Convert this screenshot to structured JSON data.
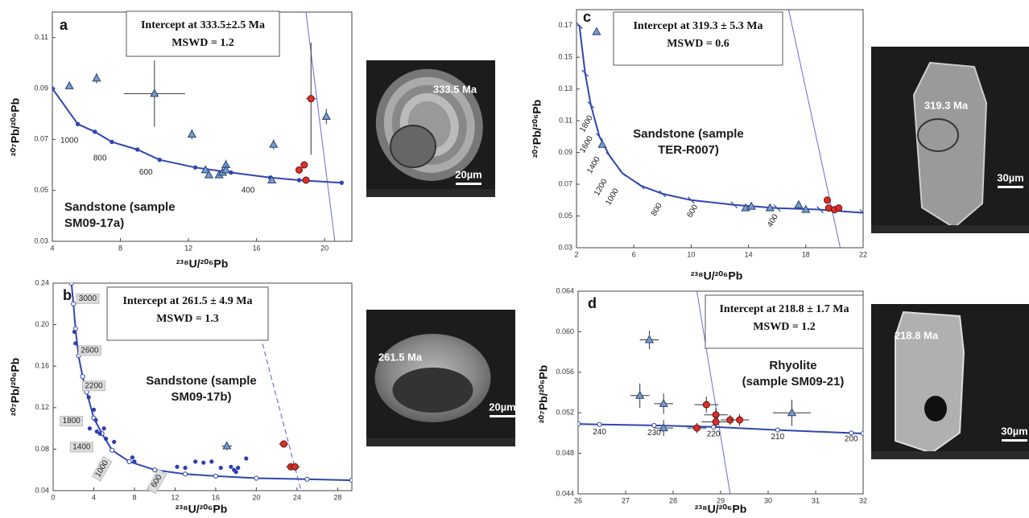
{
  "chart_data": [
    {
      "type": "scatter",
      "panel": "a",
      "intercept": "Intercept at 333.5±2.5 Ma",
      "mswd": "MSWD = 1.2",
      "sample": [
        "Sandstone (sample",
        "SM09-17a)"
      ],
      "xlabel": "²³⁸U/²⁰⁶Pb",
      "ylabel": "²⁰⁷Pb/²⁰⁶Pb",
      "xlim": [
        4,
        21.6
      ],
      "ylim": [
        0.03,
        0.12
      ],
      "xticks": [
        4,
        8,
        12,
        16,
        20
      ],
      "yticks": [
        0.03,
        0.05,
        0.07,
        0.09,
        0.11
      ],
      "series": [
        {
          "color": "#6f9fd0",
          "marker": "triangle",
          "x": [
            5.0,
            6.6,
            10.0,
            12.2,
            13.0,
            13.2,
            13.8,
            14.0,
            14.2,
            14.2,
            16.9,
            17.0,
            20.1
          ],
          "values": [
            0.091,
            0.094,
            0.088,
            0.072,
            0.058,
            0.056,
            0.056,
            0.057,
            0.06,
            0.058,
            0.054,
            0.068,
            0.079
          ],
          "xerr": [
            null,
            null,
            1.8,
            null,
            null,
            null,
            null,
            null,
            null,
            null,
            null,
            null,
            null
          ],
          "yerr": [
            null,
            0.002,
            0.013,
            0.002,
            null,
            null,
            null,
            null,
            0.002,
            null,
            null,
            0.002,
            0.003
          ]
        },
        {
          "color": "#d9302a",
          "marker": "circle",
          "x": [
            18.5,
            18.8,
            18.9,
            19.2
          ],
          "values": [
            0.058,
            0.06,
            0.054,
            0.086
          ],
          "xerr": [
            0.2,
            null,
            null,
            0.3
          ],
          "yerr": [
            null,
            null,
            null,
            0.022
          ]
        }
      ],
      "concordia": {
        "x": [
          4,
          5.5,
          6.5,
          7.5,
          9,
          10.3,
          12.4,
          14.5,
          16.8,
          18.5,
          21
        ],
        "values": [
          0.09,
          0.076,
          0.073,
          0.069,
          0.066,
          0.062,
          0.059,
          0.057,
          0.055,
          0.054,
          0.053
        ],
        "marker": "filled",
        "color": "#2f46b0"
      },
      "concordia_labels": [
        "1000",
        "800",
        "600",
        "400"
      ],
      "discordia": {
        "x": [
          18.9,
          20.6
        ],
        "values": [
          0.12,
          0.03
        ],
        "dashed": false,
        "color": "#6a6ad8"
      },
      "image": {
        "age": "333.5 Ma",
        "scale": "20µm"
      }
    },
    {
      "type": "scatter",
      "panel": "b",
      "intercept": "Intercept at 261.5 ± 4.9 Ma",
      "mswd": "MSWD = 1.3",
      "sample": [
        "Sandstone (sample",
        "SM09-17b)"
      ],
      "xlabel": "²³⁸U/²⁰⁶Pb",
      "ylabel": "²⁰⁷Pb/²⁰⁶Pb",
      "xlim": [
        0,
        29.4
      ],
      "ylim": [
        0.04,
        0.24
      ],
      "xticks": [
        0,
        4,
        8,
        12,
        16,
        20,
        24,
        28
      ],
      "yticks": [
        0.04,
        0.08,
        0.12,
        0.16,
        {
          "value": 0.2,
          "label": "0.20"
        },
        0.24
      ],
      "series": [
        {
          "color": "#2d3fae",
          "marker": "dot",
          "x": [
            2.1,
            2.2,
            3.5,
            4.0,
            4.2,
            3.6,
            4.3,
            4.6,
            5.0,
            5.2,
            6.0,
            3.4,
            7.8,
            8.0,
            12.2,
            13.0,
            14.0,
            14.8,
            15.6,
            16.5,
            17.5,
            18.0,
            18.2,
            19.0,
            17.8
          ],
          "values": [
            0.193,
            0.182,
            0.13,
            0.118,
            0.108,
            0.1,
            0.097,
            0.095,
            0.1,
            0.09,
            0.087,
            0.082,
            0.072,
            0.068,
            0.063,
            0.062,
            0.068,
            0.067,
            0.068,
            0.062,
            0.063,
            0.058,
            0.062,
            0.071,
            0.06
          ]
        },
        {
          "color": "#6f9fd0",
          "marker": "triangle",
          "x": [
            17.1
          ],
          "values": [
            0.083
          ],
          "xerr": [
            0.5
          ],
          "yerr": [
            0.004
          ]
        },
        {
          "color": "#d9302a",
          "marker": "circle",
          "x": [
            22.7,
            23.4,
            23.8
          ],
          "values": [
            0.085,
            0.063,
            0.063
          ],
          "xerr": [
            0.5,
            0.5,
            0.5
          ],
          "yerr": [
            0.003,
            null,
            null
          ]
        }
      ],
      "concordia": {
        "x": [
          1.8,
          2.0,
          2.2,
          2.5,
          2.9,
          3.3,
          4.0,
          4.8,
          5.8,
          7.5,
          10,
          13,
          16,
          20,
          25,
          29.4
        ],
        "values": [
          0.24,
          0.22,
          0.196,
          0.17,
          0.15,
          0.135,
          0.11,
          0.095,
          0.079,
          0.068,
          0.06,
          0.056,
          0.054,
          0.052,
          0.051,
          0.05
        ],
        "marker": "open",
        "color": "#2f46b0"
      },
      "concordia_labels": [
        "3000",
        "2600",
        "2200",
        "1800",
        "1400",
        "1000",
        "600"
      ],
      "discordia": {
        "x": [
          20.0,
          24.4
        ],
        "values": [
          0.204,
          0.04
        ],
        "dashed": true,
        "color": "#4a5ad0"
      },
      "image": {
        "age": "261.5 Ma",
        "scale": "20µm"
      }
    },
    {
      "type": "scatter",
      "panel": "c",
      "intercept": "Intercept at 319.3 ± 5.3 Ma",
      "mswd": "MSWD = 0.6",
      "sample": [
        "Sandstone (sample",
        "TER-R007)"
      ],
      "xlabel": "²³⁸U/²⁰⁶Pb",
      "ylabel": "²⁰⁷Pb/²⁰⁶Pb",
      "xlim": [
        2,
        22
      ],
      "ylim": [
        0.03,
        0.18
      ],
      "xticks": [
        2,
        6,
        10,
        14,
        18,
        22
      ],
      "yticks": [
        0.03,
        0.05,
        0.07,
        0.09,
        0.11,
        0.13,
        0.15,
        0.17
      ],
      "series": [
        {
          "color": "#6f9fd0",
          "marker": "triangle",
          "x": [
            3.4,
            3.8,
            13.8,
            14.2,
            15.5,
            17.5,
            18.0
          ],
          "values": [
            0.166,
            0.095,
            0.055,
            0.056,
            0.055,
            0.057,
            0.054
          ]
        },
        {
          "color": "#d9302a",
          "marker": "circle",
          "x": [
            19.5,
            19.6,
            20.0,
            20.3
          ],
          "values": [
            0.06,
            0.055,
            0.054,
            0.055
          ]
        }
      ],
      "concordia": {
        "x": [
          2.2,
          2.6,
          3.0,
          3.6,
          4.3,
          5.2,
          6.5,
          8,
          10,
          13,
          16,
          19,
          22
        ],
        "values": [
          0.17,
          0.14,
          0.12,
          0.1,
          0.088,
          0.077,
          0.069,
          0.064,
          0.06,
          0.057,
          0.055,
          0.054,
          0.052
        ],
        "marker": "tick",
        "color": "#2f46b0"
      },
      "concordia_labels": [
        "1800",
        "1600",
        "1400",
        "1200",
        "1000",
        "800",
        "600",
        "400"
      ],
      "discordia": {
        "x": [
          16.8,
          20.4
        ],
        "values": [
          0.18,
          0.03
        ],
        "dashed": false,
        "color": "#6a6ad8"
      },
      "image": {
        "age": "319.3 Ma",
        "scale": "30µm"
      }
    },
    {
      "type": "scatter",
      "panel": "d",
      "intercept": "Intercept at 218.8 ± 1.7 Ma",
      "mswd": "MSWD = 1.2",
      "sample": [
        "Rhyolite",
        "(sample SM09-21)"
      ],
      "xlabel": "²³⁸U/²⁰⁶Pb",
      "ylabel": "²⁰⁷Pb/²⁰⁶Pb",
      "xlim": [
        26,
        32
      ],
      "ylim": [
        0.044,
        0.064
      ],
      "xticks": [
        26,
        27,
        28,
        29,
        30,
        31,
        32
      ],
      "yticks": [
        0.044,
        0.048,
        0.052,
        0.056,
        {
          "value": 0.06,
          "label": "0.060"
        },
        0.064
      ],
      "series": [
        {
          "color": "#6f9fd0",
          "marker": "triangle",
          "x": [
            27.3,
            27.5,
            27.8,
            27.8,
            30.5
          ],
          "values": [
            0.0537,
            0.0592,
            0.0529,
            0.0505,
            0.052
          ],
          "xerr": [
            0.2,
            0.2,
            0.2,
            0.2,
            0.4
          ],
          "yerr": [
            0.0012,
            0.0009,
            0.001,
            0.0008,
            0.0013
          ]
        },
        {
          "color": "#d9302a",
          "marker": "circle",
          "x": [
            28.5,
            28.7,
            28.9,
            28.9,
            29.2,
            29.4
          ],
          "values": [
            0.0505,
            0.0528,
            0.0518,
            0.0511,
            0.0513,
            0.0513
          ],
          "xerr": [
            0.2,
            0.25,
            0.25,
            0.3,
            0.2,
            0.2
          ],
          "yerr": [
            0.0005,
            0.0008,
            0.0007,
            0.0006,
            0.0005,
            0.0006
          ]
        }
      ],
      "concordia": {
        "x": [
          26,
          26.45,
          27.6,
          28.85,
          30.2,
          31.75,
          32
        ],
        "values": [
          0.0509,
          0.05085,
          0.05075,
          0.0506,
          0.0503,
          0.05,
          0.04995
        ],
        "marker": "open",
        "color": "#2f46b0"
      },
      "concordia_labels": [
        "240",
        "230",
        "220",
        "210",
        "200"
      ],
      "discordia": {
        "x": [
          28.5,
          29.2
        ],
        "values": [
          0.064,
          0.044
        ],
        "dashed": false,
        "color": "#6a6ad8"
      },
      "image": {
        "age": "218.8 Ma",
        "scale": "30µm"
      }
    }
  ]
}
